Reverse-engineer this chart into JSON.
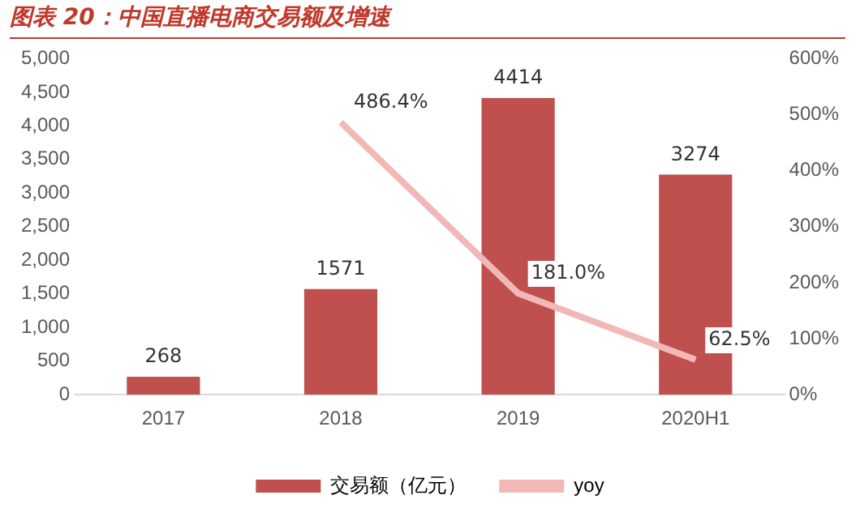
{
  "chart_data": {
    "type": "bar",
    "title": "图表 20：中国直播电商交易额及增速",
    "categories": [
      "2017",
      "2018",
      "2019",
      "2020H1"
    ],
    "series": [
      {
        "name": "交易额（亿元）",
        "color": "#c0504d",
        "values": [
          268,
          1571,
          4414,
          3274
        ],
        "value_labels": [
          "268",
          "1571",
          "4414",
          "3274"
        ]
      },
      {
        "name": "yoy",
        "type": "line",
        "axis": "y2",
        "color": "#f2b8b8",
        "values": [
          null,
          486.4,
          181.0,
          62.5
        ],
        "value_labels": [
          null,
          "486.4%",
          "181.0%",
          "62.5%"
        ]
      }
    ],
    "ylim": [
      0,
      5000
    ],
    "yticks": [
      0,
      {
        "value": 500,
        "label": "500"
      },
      {
        "value": 1000,
        "label": "1,000"
      },
      {
        "value": 1500,
        "label": "1,500"
      },
      {
        "value": 2000,
        "label": "2,000"
      },
      {
        "value": 2500,
        "label": "2,500"
      },
      {
        "value": 3000,
        "label": "3,000"
      },
      {
        "value": 3500,
        "label": "3,500"
      },
      {
        "value": 4000,
        "label": "4,000"
      },
      {
        "value": 4500,
        "label": "4,500"
      },
      {
        "value": 5000,
        "label": "5,000"
      }
    ],
    "y2lim": [
      0,
      600
    ],
    "y2ticks": [
      {
        "value": 0,
        "label": "0%"
      },
      {
        "value": 100,
        "label": "100%"
      },
      {
        "value": 200,
        "label": "200%"
      },
      {
        "value": 300,
        "label": "300%"
      },
      {
        "value": 400,
        "label": "400%"
      },
      {
        "value": 500,
        "label": "500%"
      },
      {
        "value": 600,
        "label": "600%"
      }
    ],
    "grid": false,
    "legend": "bottom",
    "marker": "none",
    "line_style": "solid"
  }
}
